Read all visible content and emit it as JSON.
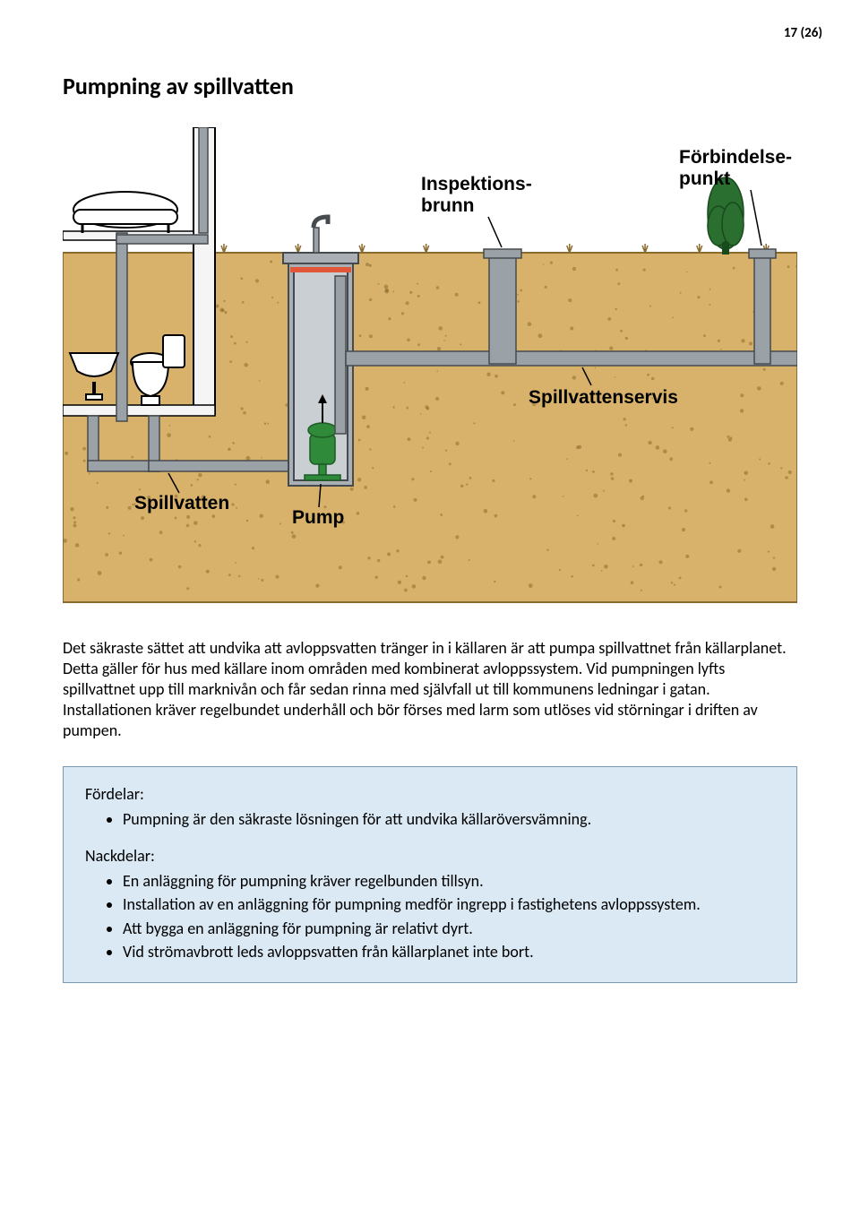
{
  "page_number": "17 (26)",
  "title": "Pumpning av spillvatten",
  "diagram": {
    "labels": {
      "inspektionsbrunn": "Inspektions-\nbrunn",
      "forbindelsepunkt": "Förbindelse-\npunkt",
      "spillvattenservis": "Spillvattenservis",
      "spillvatten": "Spillvatten",
      "pump": "Pump"
    },
    "colors": {
      "sky": "#ffffff",
      "soil_top": "#d8b26b",
      "soil_outline": "#8a6b2e",
      "wall_fill": "#f5f5f5",
      "wall_stroke": "#000000",
      "pipe_fill": "#9aa1a7",
      "pipe_stroke": "#454a4e",
      "well_fill": "#a9afb4",
      "well_inner": "#c9cfd2",
      "pump_green": "#2f8a3a",
      "pump_dark": "#1e5b26",
      "bush_green": "#2a6f2f",
      "bush_dark": "#174b1c",
      "fixture_fill": "#ffffff",
      "fixture_stroke": "#000000",
      "red_bar": "#e2563a",
      "label_fontsize": 21
    }
  },
  "paragraph": "Det säkraste sättet att undvika att avloppsvatten tränger in i källaren är att pumpa spillvattnet från källarplanet. Detta gäller för hus med källare inom områden med kombinerat avloppssystem. Vid pumpningen lyfts spillvattnet upp till marknivån och får sedan rinna med självfall ut till kommunens ledningar i gatan. Installationen kräver regelbundet underhåll och bör förses med larm som utlöses vid störningar i driften av pumpen.",
  "box": {
    "fordelar_label": "Fördelar:",
    "fordelar": [
      "Pumpning är den säkraste lösningen för att undvika källaröversvämning."
    ],
    "nackdelar_label": "Nackdelar:",
    "nackdelar": [
      "En anläggning för pumpning kräver regelbunden tillsyn.",
      "Installation av en anläggning för pumpning medför ingrepp i fastighetens avloppssystem.",
      "Att bygga en anläggning för pumpning är relativt dyrt.",
      "Vid strömavbrott leds avloppsvatten från källarplanet inte bort."
    ]
  }
}
